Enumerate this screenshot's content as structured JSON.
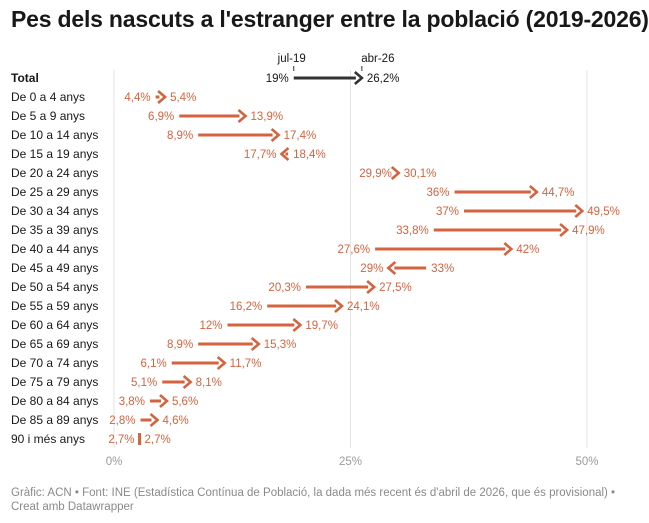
{
  "title": "Pes dels nascuts a l'estranger entre la població (2019-2026)",
  "footer": "Gràfic: ACN • Font: INE (Estadística Contínua de Població, la dada més recent és d'abril de 2026, que és provisional) • Creat amb Datawrapper",
  "chart_data": {
    "type": "arrow",
    "start_label": "jul-19",
    "end_label": "abr-26",
    "xlim": [
      0,
      50
    ],
    "xticks": [
      {
        "value": 0,
        "label": "0%"
      },
      {
        "value": 25,
        "label": "25%"
      },
      {
        "value": 50,
        "label": "50%"
      }
    ],
    "grid": true,
    "colors": {
      "highlight": "#333333",
      "rows": "#d4633f"
    },
    "rows": [
      {
        "label": "Total",
        "start": 19.0,
        "end": 26.2,
        "start_text": "19%",
        "end_text": "26,2%",
        "highlight": true
      },
      {
        "label": "De 0 a 4 anys",
        "start": 4.4,
        "end": 5.4,
        "start_text": "4,4%",
        "end_text": "5,4%"
      },
      {
        "label": "De 5 a 9 anys",
        "start": 6.9,
        "end": 13.9,
        "start_text": "6,9%",
        "end_text": "13,9%"
      },
      {
        "label": "De 10 a 14 anys",
        "start": 8.9,
        "end": 17.4,
        "start_text": "8,9%",
        "end_text": "17,4%"
      },
      {
        "label": "De 15 a 19 anys",
        "start": 18.4,
        "end": 17.7,
        "start_text": "18,4%",
        "end_text": "17,7%"
      },
      {
        "label": "De 20 a 24 anys",
        "start": 29.9,
        "end": 30.1,
        "start_text": "29,9%",
        "end_text": "30,1%"
      },
      {
        "label": "De 25 a 29 anys",
        "start": 36.0,
        "end": 44.7,
        "start_text": "36%",
        "end_text": "44,7%"
      },
      {
        "label": "De 30 a 34 anys",
        "start": 37.0,
        "end": 49.5,
        "start_text": "37%",
        "end_text": "49,5%"
      },
      {
        "label": "De 35 a 39 anys",
        "start": 33.8,
        "end": 47.9,
        "start_text": "33,8%",
        "end_text": "47,9%"
      },
      {
        "label": "De 40 a 44 anys",
        "start": 27.6,
        "end": 42.0,
        "start_text": "27,6%",
        "end_text": "42%"
      },
      {
        "label": "De 45 a 49 anys",
        "start": 33.0,
        "end": 29.0,
        "start_text": "33%",
        "end_text": "29%"
      },
      {
        "label": "De 50 a 54 anys",
        "start": 20.3,
        "end": 27.5,
        "start_text": "20,3%",
        "end_text": "27,5%"
      },
      {
        "label": "De 55 a 59 anys",
        "start": 16.2,
        "end": 24.1,
        "start_text": "16,2%",
        "end_text": "24,1%"
      },
      {
        "label": "De 60 a 64 anys",
        "start": 12.0,
        "end": 19.7,
        "start_text": "12%",
        "end_text": "19,7%"
      },
      {
        "label": "De 65 a 69 anys",
        "start": 8.9,
        "end": 15.3,
        "start_text": "8,9%",
        "end_text": "15,3%"
      },
      {
        "label": "De 70 a 74 anys",
        "start": 6.1,
        "end": 11.7,
        "start_text": "6,1%",
        "end_text": "11,7%"
      },
      {
        "label": "De 75 a 79 anys",
        "start": 5.1,
        "end": 8.1,
        "start_text": "5,1%",
        "end_text": "8,1%"
      },
      {
        "label": "De 80 a 84 anys",
        "start": 3.8,
        "end": 5.6,
        "start_text": "3,8%",
        "end_text": "5,6%"
      },
      {
        "label": "De 85 a 89 anys",
        "start": 2.8,
        "end": 4.6,
        "start_text": "2,8%",
        "end_text": "4,6%"
      },
      {
        "label": "90 i més anys",
        "start": 2.7,
        "end": 2.7,
        "start_text": "2,7%",
        "end_text": "2,7%"
      }
    ]
  }
}
